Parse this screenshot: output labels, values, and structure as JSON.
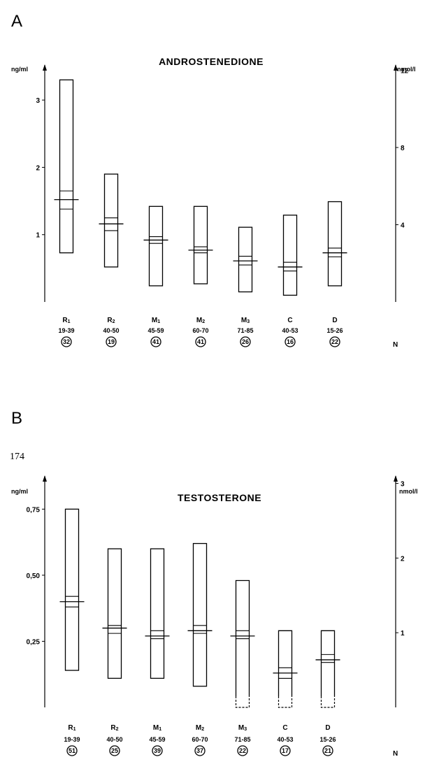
{
  "page_number": "174",
  "chart_data": [
    {
      "type": "bar",
      "panel": "A",
      "title": "ANDROSTENEDIONE",
      "ylabel_left": "ng/ml",
      "ylabel_right": "nmol/l",
      "ylim": [
        0,
        3.5
      ],
      "yticks_left": [
        {
          "value": 1,
          "label": "1"
        },
        {
          "value": 2,
          "label": "2"
        },
        {
          "value": 3,
          "label": "3"
        }
      ],
      "y2lim": [
        0,
        12.2
      ],
      "yticks_right": [
        {
          "value": 4,
          "label": "4"
        },
        {
          "value": 8,
          "label": "8"
        },
        {
          "value": 12,
          "label": "12"
        }
      ],
      "n_label": "N",
      "categories": [
        {
          "group": "R1",
          "age": "19-39",
          "n": "32",
          "min": 0.73,
          "max": 3.3,
          "mean": 1.52,
          "sem_low": 1.38,
          "sem_high": 1.65
        },
        {
          "group": "R2",
          "age": "40-50",
          "n": "19",
          "min": 0.52,
          "max": 1.9,
          "mean": 1.16,
          "sem_low": 1.06,
          "sem_high": 1.25
        },
        {
          "group": "M1",
          "age": "45-59",
          "n": "41",
          "min": 0.24,
          "max": 1.42,
          "mean": 0.92,
          "sem_low": 0.87,
          "sem_high": 0.97
        },
        {
          "group": "M2",
          "age": "60-70",
          "n": "41",
          "min": 0.27,
          "max": 1.42,
          "mean": 0.77,
          "sem_low": 0.73,
          "sem_high": 0.82
        },
        {
          "group": "M3",
          "age": "71-85",
          "n": "26",
          "min": 0.15,
          "max": 1.11,
          "mean": 0.61,
          "sem_low": 0.55,
          "sem_high": 0.68
        },
        {
          "group": "C",
          "age": "40-53",
          "n": "16",
          "min": 0.1,
          "max": 1.29,
          "mean": 0.52,
          "sem_low": 0.46,
          "sem_high": 0.59
        },
        {
          "group": "D",
          "age": "15-26",
          "n": "22",
          "min": 0.24,
          "max": 1.49,
          "mean": 0.73,
          "sem_low": 0.67,
          "sem_high": 0.8
        }
      ]
    },
    {
      "type": "bar",
      "panel": "B",
      "title": "TESTOSTERONE",
      "ylabel_left": "ng/ml",
      "ylabel_right": "nmol/l",
      "ylim": [
        0,
        0.87
      ],
      "yticks_left": [
        {
          "value": 0.25,
          "label": "0,25"
        },
        {
          "value": 0.5,
          "label": "0,50"
        },
        {
          "value": 0.75,
          "label": "0,75"
        }
      ],
      "y2lim": [
        0,
        3.08
      ],
      "yticks_right": [
        {
          "value": 1,
          "label": "1"
        },
        {
          "value": 2,
          "label": "2"
        },
        {
          "value": 3,
          "label": "3"
        }
      ],
      "n_label": "N",
      "categories": [
        {
          "group": "R1",
          "age": "19-39",
          "n": "51",
          "min": 0.14,
          "max": 0.75,
          "mean": 0.4,
          "sem_low": 0.38,
          "sem_high": 0.42,
          "open_bottom": false
        },
        {
          "group": "R2",
          "age": "40-50",
          "n": "25",
          "min": 0.11,
          "max": 0.6,
          "mean": 0.3,
          "sem_low": 0.28,
          "sem_high": 0.31,
          "open_bottom": false
        },
        {
          "group": "M1",
          "age": "45-59",
          "n": "39",
          "min": 0.11,
          "max": 0.6,
          "mean": 0.27,
          "sem_low": 0.26,
          "sem_high": 0.29,
          "open_bottom": false
        },
        {
          "group": "M2",
          "age": "60-70",
          "n": "37",
          "min": 0.08,
          "max": 0.62,
          "mean": 0.29,
          "sem_low": 0.28,
          "sem_high": 0.31,
          "open_bottom": false
        },
        {
          "group": "M3",
          "age": "71-85",
          "n": "22",
          "min": 0.0,
          "max": 0.48,
          "mean": 0.27,
          "sem_low": 0.26,
          "sem_high": 0.29,
          "open_bottom": true
        },
        {
          "group": "C",
          "age": "40-53",
          "n": "17",
          "min": 0.0,
          "max": 0.29,
          "mean": 0.13,
          "sem_low": 0.11,
          "sem_high": 0.15,
          "open_bottom": true
        },
        {
          "group": "D",
          "age": "15-26",
          "n": "21",
          "min": 0.0,
          "max": 0.29,
          "mean": 0.18,
          "sem_low": 0.17,
          "sem_high": 0.2,
          "open_bottom": true
        }
      ]
    }
  ]
}
